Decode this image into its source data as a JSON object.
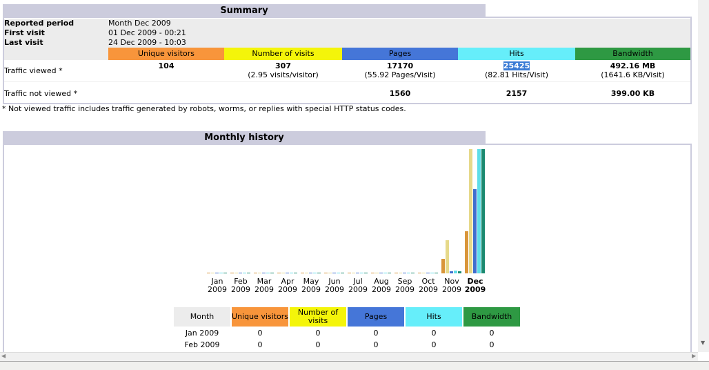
{
  "summary": {
    "title": "Summary",
    "reported_period_label": "Reported period",
    "reported_period": "Month Dec 2009",
    "first_visit_label": "First visit",
    "first_visit": "01 Dec 2009 - 00:21",
    "last_visit_label": "Last visit",
    "last_visit": "24 Dec 2009 - 10:03",
    "columns": [
      "Unique visitors",
      "Number of visits",
      "Pages",
      "Hits",
      "Bandwidth"
    ],
    "colors": [
      "#f8953b",
      "#f4f50a",
      "#4576d8",
      "#66eefa",
      "#2e9943"
    ],
    "viewed_label": "Traffic viewed *",
    "viewed": {
      "uv": "104",
      "visits": "307",
      "visits_sub": "(2.95 visits/visitor)",
      "pages": "17170",
      "pages_sub": "(55.92 Pages/Visit)",
      "hits": "25425",
      "hits_sub": "(82.81 Hits/Visit)",
      "bw": "492.16 MB",
      "bw_sub": "(1641.6 KB/Visit)"
    },
    "not_viewed_label": "Traffic not viewed *",
    "not_viewed": {
      "pages": "1560",
      "hits": "2157",
      "bw": "399.00 KB"
    },
    "footnote": "* Not viewed traffic includes traffic generated by robots, worms, or replies with special HTTP status codes."
  },
  "history": {
    "title": "Monthly history",
    "months": [
      [
        "Jan",
        "2009"
      ],
      [
        "Feb",
        "2009"
      ],
      [
        "Mar",
        "2009"
      ],
      [
        "Apr",
        "2009"
      ],
      [
        "May",
        "2009"
      ],
      [
        "Jun",
        "2009"
      ],
      [
        "Jul",
        "2009"
      ],
      [
        "Aug",
        "2009"
      ],
      [
        "Sep",
        "2009"
      ],
      [
        "Oct",
        "2009"
      ],
      [
        "Nov",
        "2009"
      ],
      [
        "Dec",
        "2009"
      ]
    ],
    "table_headers": [
      "Month",
      "Unique visitors",
      "Number of visits",
      "Pages",
      "Hits",
      "Bandwidth"
    ],
    "rows": [
      [
        "Jan 2009",
        "0",
        "0",
        "0",
        "0",
        "0"
      ],
      [
        "Feb 2009",
        "0",
        "0",
        "0",
        "0",
        "0"
      ]
    ]
  },
  "chart_data": {
    "type": "bar",
    "categories": [
      "Jan 2009",
      "Feb 2009",
      "Mar 2009",
      "Apr 2009",
      "May 2009",
      "Jun 2009",
      "Jul 2009",
      "Aug 2009",
      "Sep 2009",
      "Oct 2009",
      "Nov 2009",
      "Dec 2009"
    ],
    "series": [
      {
        "name": "Unique visitors",
        "color": "#d9963a",
        "values": [
          0,
          0,
          0,
          0,
          0,
          0,
          0,
          0,
          0,
          0,
          36,
          104
        ]
      },
      {
        "name": "Number of visits",
        "color": "#e6d98a",
        "values": [
          0,
          0,
          0,
          0,
          0,
          0,
          0,
          0,
          0,
          0,
          82,
          307
        ]
      },
      {
        "name": "Pages",
        "color": "#3f6fcf",
        "values": [
          0,
          0,
          0,
          0,
          0,
          0,
          0,
          0,
          0,
          0,
          400,
          17170
        ]
      },
      {
        "name": "Hits",
        "color": "#5fdde8",
        "values": [
          0,
          0,
          0,
          0,
          0,
          0,
          0,
          0,
          0,
          0,
          600,
          25425
        ]
      },
      {
        "name": "Bandwidth (MB)",
        "color": "#1a8a70",
        "values": [
          0,
          0,
          0,
          0,
          0,
          0,
          0,
          0,
          0,
          0,
          8,
          492.16
        ]
      }
    ]
  }
}
